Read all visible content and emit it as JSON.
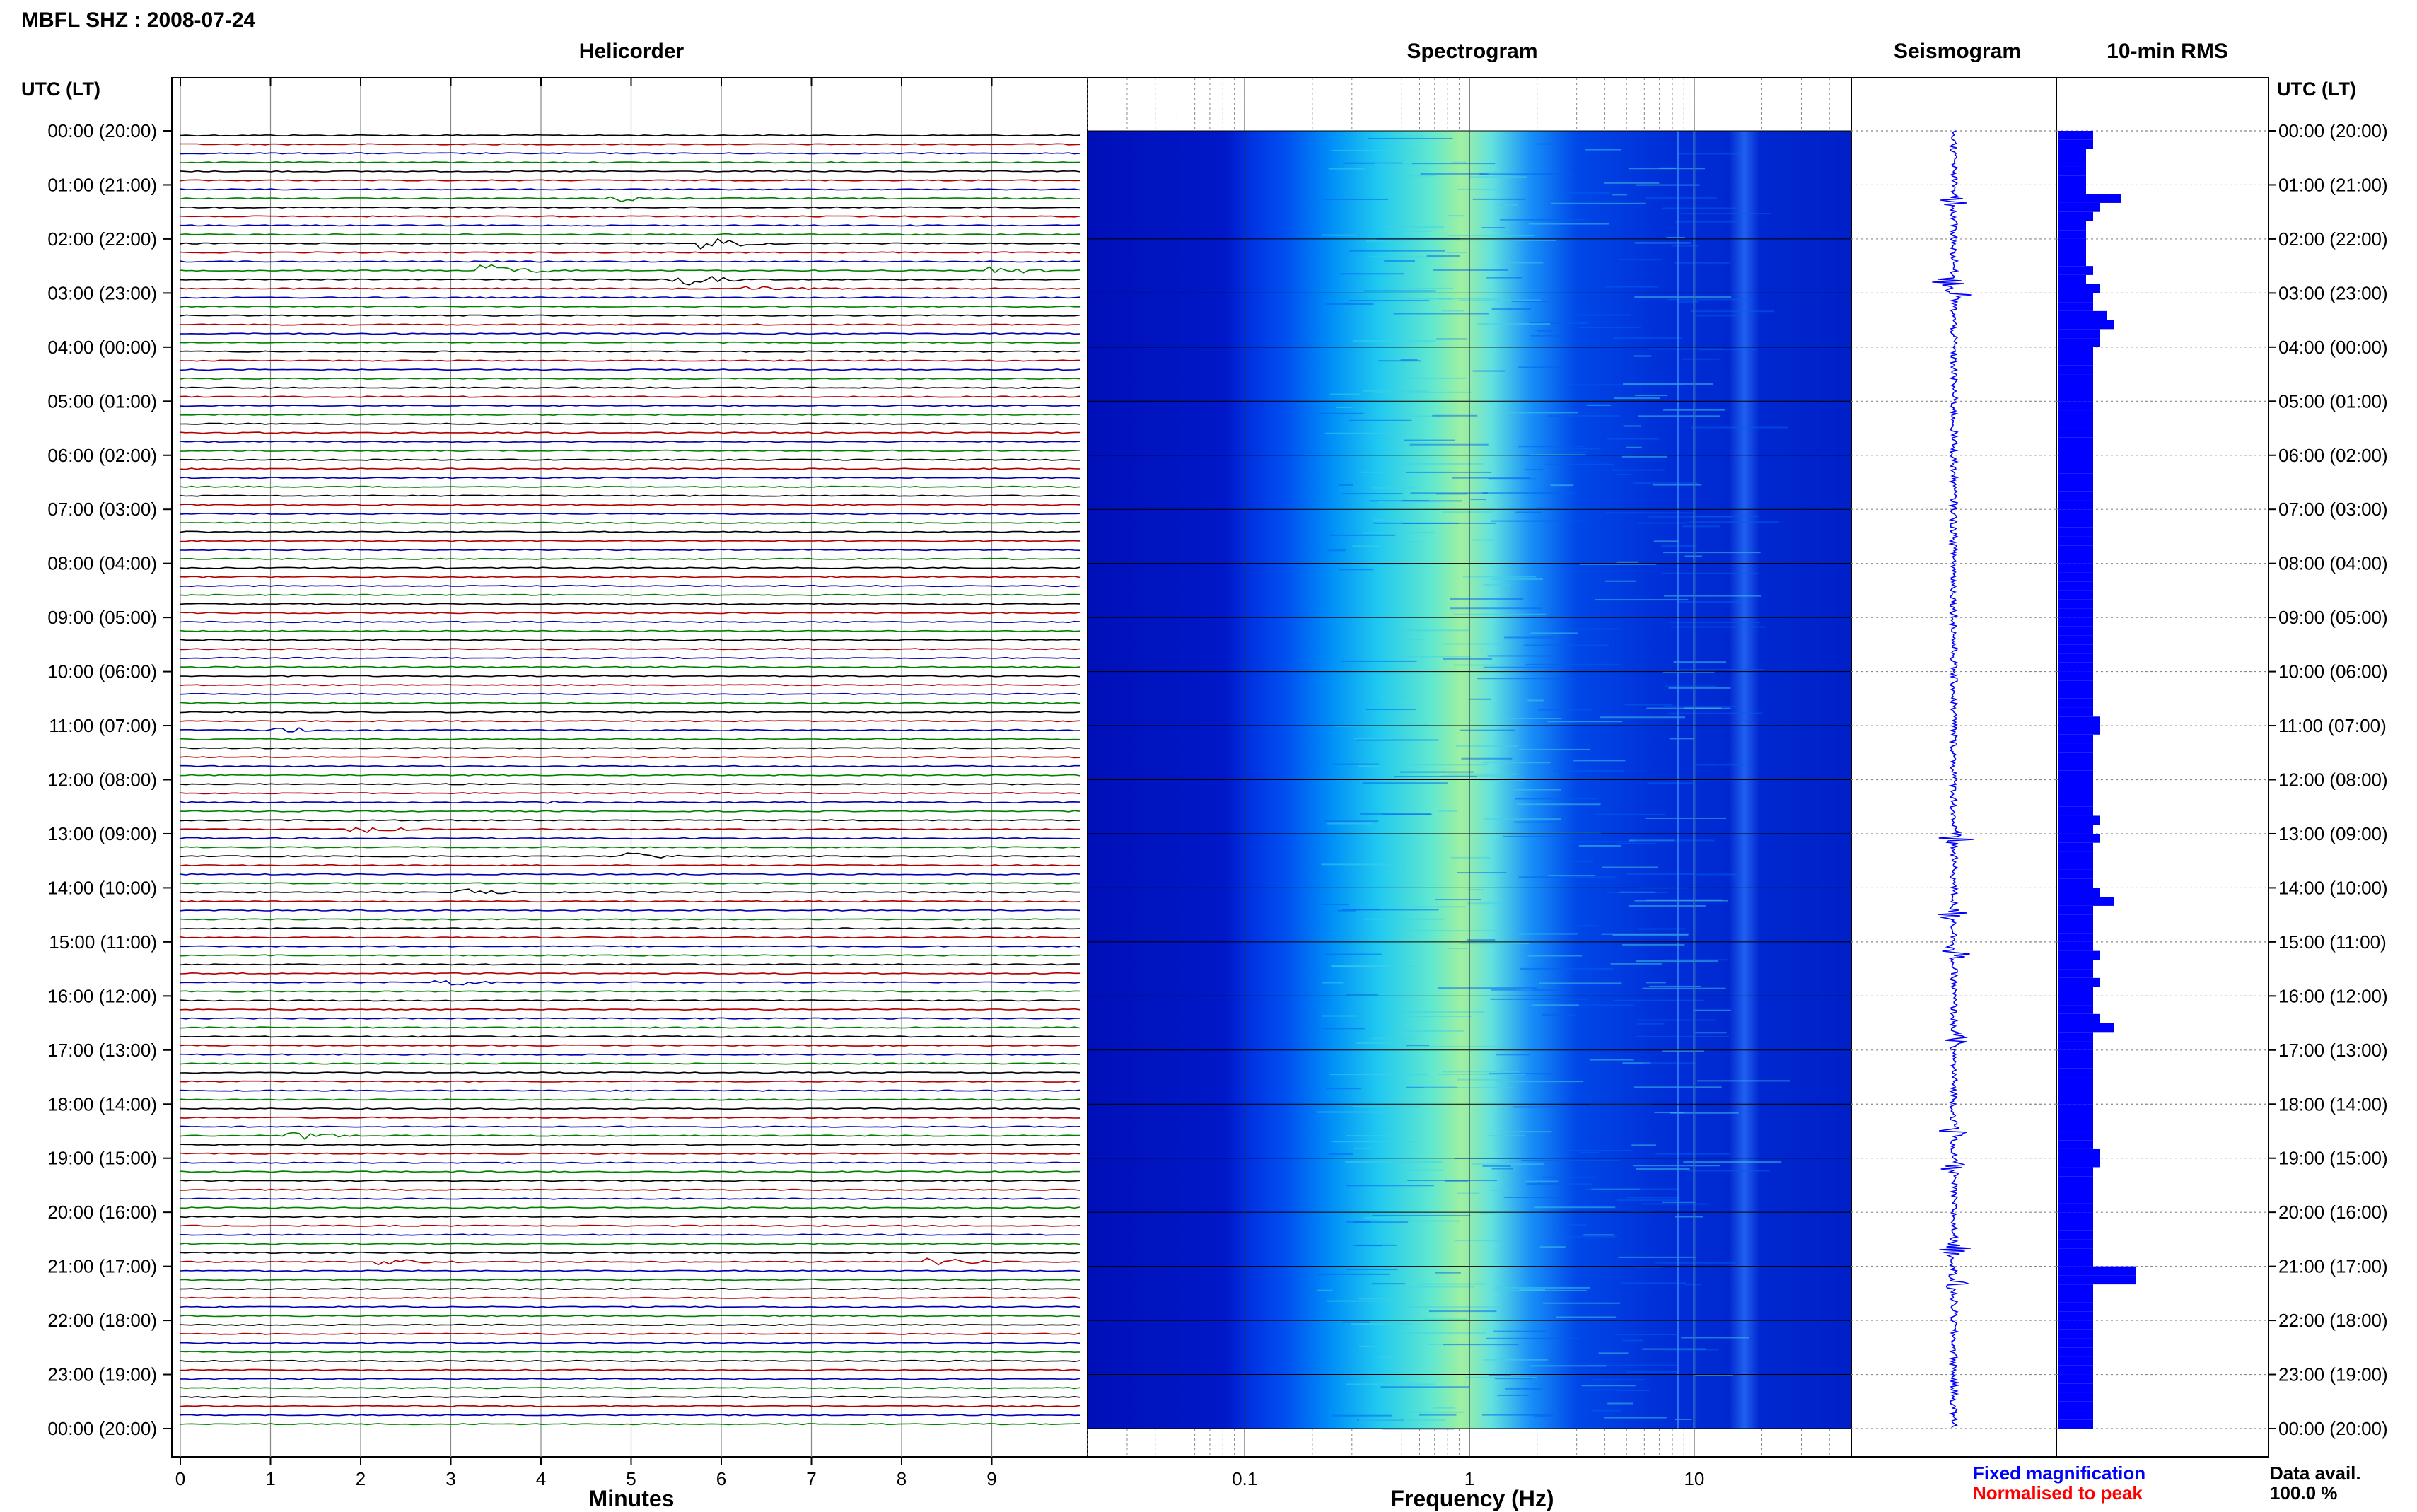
{
  "title": "MBFL SHZ : 2008-07-24",
  "panels": {
    "helicorder": "Helicorder",
    "spectrogram": "Spectrogram",
    "seismogram": "Seismogram",
    "rms": "10-min RMS"
  },
  "axis_headers": {
    "left": "UTC (LT)",
    "right": "UTC (LT)"
  },
  "time_labels": [
    "00:00 (20:00)",
    "01:00 (21:00)",
    "02:00 (22:00)",
    "03:00 (23:00)",
    "04:00 (00:00)",
    "05:00 (01:00)",
    "06:00 (02:00)",
    "07:00 (03:00)",
    "08:00 (04:00)",
    "09:00 (05:00)",
    "10:00 (06:00)",
    "11:00 (07:00)",
    "12:00 (08:00)",
    "13:00 (09:00)",
    "14:00 (10:00)",
    "15:00 (11:00)",
    "16:00 (12:00)",
    "17:00 (13:00)",
    "18:00 (14:00)",
    "19:00 (15:00)",
    "20:00 (16:00)",
    "21:00 (17:00)",
    "22:00 (18:00)",
    "23:00 (19:00)",
    "00:00 (20:00)"
  ],
  "helicorder_xaxis": {
    "label": "Minutes",
    "ticks": [
      "0",
      "1",
      "2",
      "3",
      "4",
      "5",
      "6",
      "7",
      "8",
      "9"
    ]
  },
  "spectrogram_xaxis": {
    "label": "Frequency (Hz)",
    "ticks": [
      "0.1",
      "1",
      "10"
    ]
  },
  "legend": {
    "fixed": "Fixed magnification",
    "normalised": "Normalised to peak",
    "fixed_color": "#0000ff",
    "normalised_color": "#ff0000"
  },
  "data_avail": {
    "label": "Data avail.",
    "value": "100.0 %"
  },
  "colors": {
    "trace_cycle": [
      "#000000",
      "#b00000",
      "#0000b0",
      "#008000"
    ],
    "rms_bar": "#0000ff",
    "seismogram": "#0000ff",
    "spectrogram_bg": "#0010c8"
  },
  "chart_data": [
    {
      "type": "line",
      "name": "Helicorder",
      "xlabel": "Minutes",
      "xlim": [
        0,
        10
      ],
      "ylabel": "UTC (LT)",
      "lines_per_hour": 6,
      "events": [
        {
          "row": 7,
          "minute": 4.9,
          "amp": 4
        },
        {
          "row": 12,
          "minute": 6.0,
          "amp": 5
        },
        {
          "row": 15,
          "minute": 3.5,
          "amp": 6
        },
        {
          "row": 15,
          "minute": 9.1,
          "amp": 4
        },
        {
          "row": 16,
          "minute": 5.6,
          "amp": 6
        },
        {
          "row": 17,
          "minute": 6.4,
          "amp": 3
        },
        {
          "row": 66,
          "minute": 1.3,
          "amp": 3
        },
        {
          "row": 74,
          "minute": 3.9,
          "amp": 2
        },
        {
          "row": 77,
          "minute": 2.1,
          "amp": 3
        },
        {
          "row": 80,
          "minute": 5.0,
          "amp": 3
        },
        {
          "row": 84,
          "minute": 3.2,
          "amp": 4
        },
        {
          "row": 94,
          "minute": 3.0,
          "amp": 3
        },
        {
          "row": 111,
          "minute": 1.4,
          "amp": 4
        },
        {
          "row": 125,
          "minute": 2.4,
          "amp": 4
        },
        {
          "row": 125,
          "minute": 8.5,
          "amp": 4
        }
      ]
    },
    {
      "type": "heatmap",
      "name": "Spectrogram",
      "xlabel": "Frequency (Hz)",
      "xscale": "log",
      "xlim": [
        0.02,
        50
      ],
      "peak_frequency_hz": 1.0,
      "resonance_lines_hz": [
        8.5,
        10
      ]
    },
    {
      "type": "line",
      "name": "Seismogram",
      "events_hour": [
        1.3,
        2.8,
        3.0,
        13.1,
        14.5,
        15.2,
        16.8,
        18.5,
        19.2,
        20.7,
        21.3
      ]
    },
    {
      "type": "bar",
      "name": "10-min RMS",
      "orientation": "horizontal",
      "values": [
        5,
        5,
        4,
        4,
        4,
        4,
        4,
        5,
        6,
        5,
        4,
        4,
        4,
        4,
        4,
        4,
        4,
        4,
        4,
        5,
        5,
        6,
        6,
        6,
        5,
        5,
        5,
        5,
        5,
        5,
        5,
        5,
        5,
        5,
        5,
        5,
        5,
        5,
        5,
        5,
        5,
        5,
        5,
        5,
        5,
        5,
        5,
        5,
        5,
        5,
        5,
        5,
        5,
        5,
        5,
        5,
        5,
        5,
        5,
        5,
        5,
        5,
        5,
        5,
        5,
        5,
        5,
        5,
        5,
        5,
        5,
        5,
        5,
        5,
        5,
        5,
        5,
        5,
        5,
        5,
        5,
        5,
        5,
        5,
        5,
        5,
        5,
        5,
        5,
        5,
        5,
        5,
        5,
        5,
        5,
        5,
        5,
        5,
        5,
        5,
        5,
        5,
        5,
        5,
        5,
        5,
        5,
        5,
        5,
        5,
        5,
        5,
        5,
        5,
        5,
        5,
        5,
        5,
        5,
        5,
        5,
        5,
        5,
        5,
        5,
        5,
        5,
        5,
        5,
        5,
        5,
        5,
        5,
        5,
        5,
        5,
        5,
        5,
        5,
        5,
        5,
        5,
        5,
        5
      ],
      "spikes": {
        "7": 9,
        "15": 5,
        "17": 6,
        "18": 5,
        "20": 7,
        "21": 8,
        "22": 6,
        "65": 6,
        "66": 6,
        "76": 6,
        "78": 6,
        "84": 6,
        "85": 8,
        "91": 6,
        "94": 6,
        "98": 6,
        "99": 8,
        "113": 6,
        "114": 6,
        "126": 11,
        "127": 11
      }
    }
  ]
}
